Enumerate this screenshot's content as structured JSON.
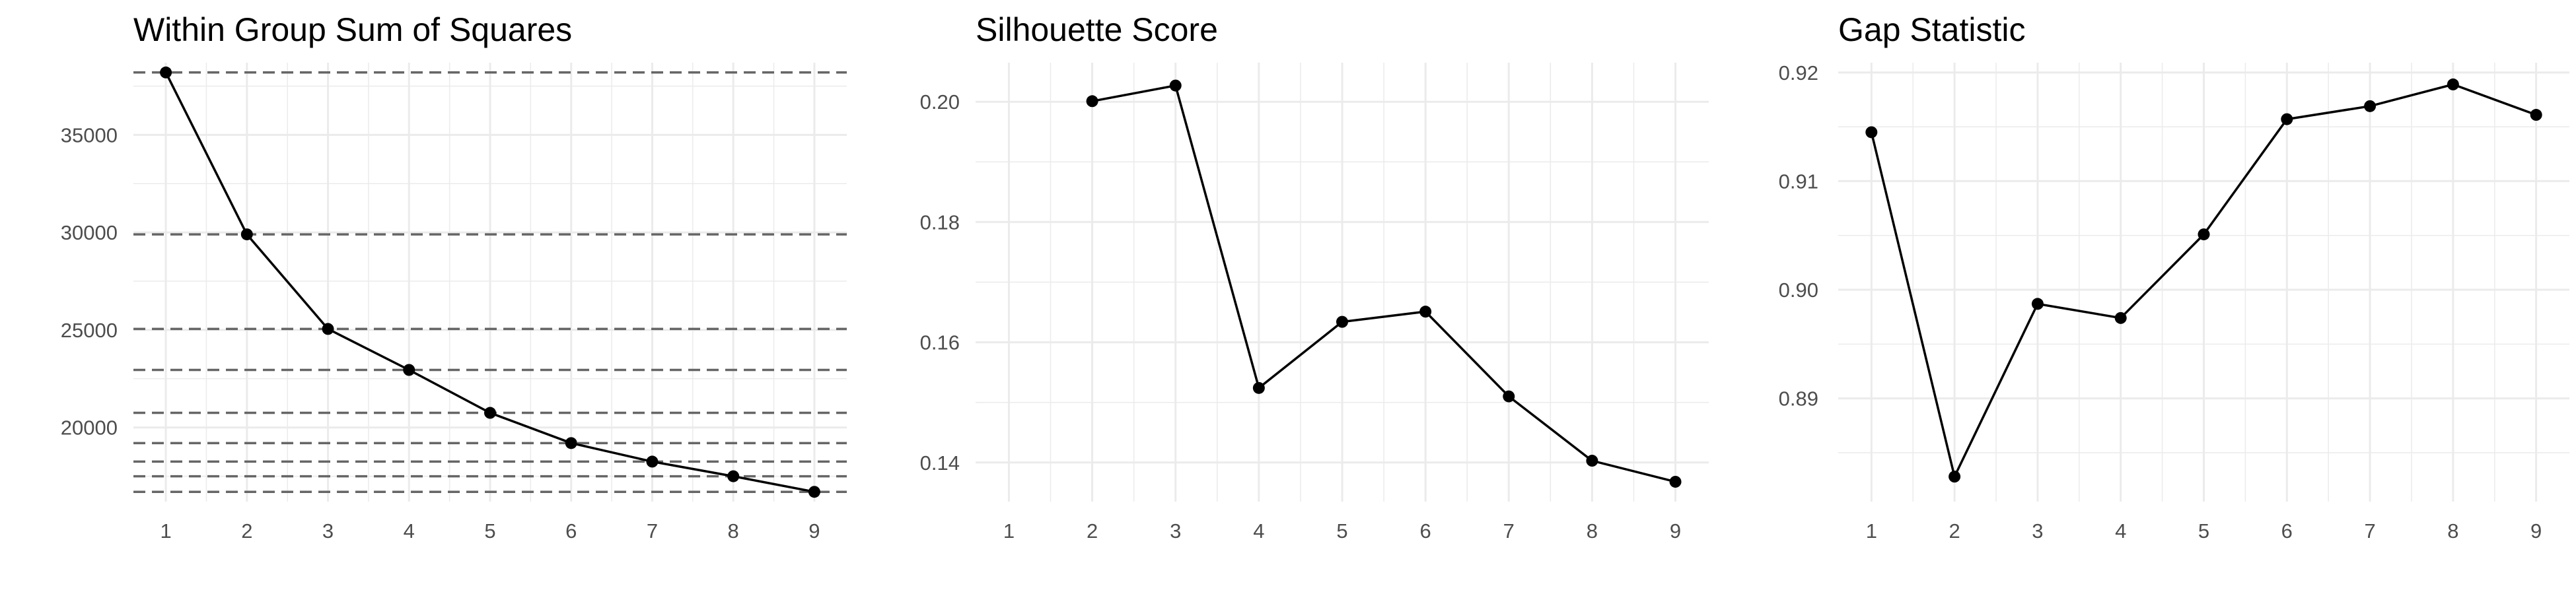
{
  "chart_data": [
    {
      "type": "line",
      "title": "Within Group Sum of Squares",
      "xlabel": "",
      "ylabel": "",
      "x": [
        1,
        2,
        3,
        4,
        5,
        6,
        7,
        8,
        9
      ],
      "values": [
        38200,
        29900,
        25050,
        22950,
        20750,
        19200,
        18250,
        17500,
        16700
      ],
      "xlim": [
        0.6,
        9.4
      ],
      "ylim": [
        16200,
        38700
      ],
      "x_ticks": [
        "1",
        "2",
        "3",
        "4",
        "5",
        "6",
        "7",
        "8",
        "9"
      ],
      "y_ticks": [
        20000,
        25000,
        30000,
        35000
      ],
      "y_tick_labels": [
        "20000",
        "25000",
        "30000",
        "35000"
      ],
      "reference_lines": "dashed horizontal at each value",
      "grid": true
    },
    {
      "type": "line",
      "title": "Silhouette Score",
      "xlabel": "",
      "ylabel": "",
      "x": [
        2,
        3,
        4,
        5,
        6,
        7,
        8,
        9
      ],
      "values": [
        0.2001,
        0.2027,
        0.1524,
        0.1634,
        0.1651,
        0.151,
        0.1403,
        0.1368
      ],
      "xlim": [
        0.6,
        9.4
      ],
      "ylim": [
        0.1335,
        0.2065
      ],
      "x_ticks": [
        "1",
        "2",
        "3",
        "4",
        "5",
        "6",
        "7",
        "8",
        "9"
      ],
      "y_ticks": [
        0.14,
        0.16,
        0.18,
        0.2
      ],
      "y_tick_labels": [
        "0.14",
        "0.16",
        "0.18",
        "0.20"
      ],
      "grid": true
    },
    {
      "type": "line",
      "title": "Gap Statistic",
      "xlabel": "",
      "ylabel": "",
      "x": [
        1,
        2,
        3,
        4,
        5,
        6,
        7,
        8,
        9
      ],
      "values": [
        0.9145,
        0.8828,
        0.8987,
        0.8974,
        0.9051,
        0.9157,
        0.9169,
        0.9189,
        0.9161
      ],
      "xlim": [
        0.6,
        9.4
      ],
      "ylim": [
        0.8805,
        0.9209
      ],
      "x_ticks": [
        "1",
        "2",
        "3",
        "4",
        "5",
        "6",
        "7",
        "8",
        "9"
      ],
      "y_ticks": [
        0.89,
        0.9,
        0.91,
        0.92
      ],
      "y_tick_labels": [
        "0.89",
        "0.90",
        "0.91",
        "0.92"
      ],
      "grid": true
    }
  ]
}
